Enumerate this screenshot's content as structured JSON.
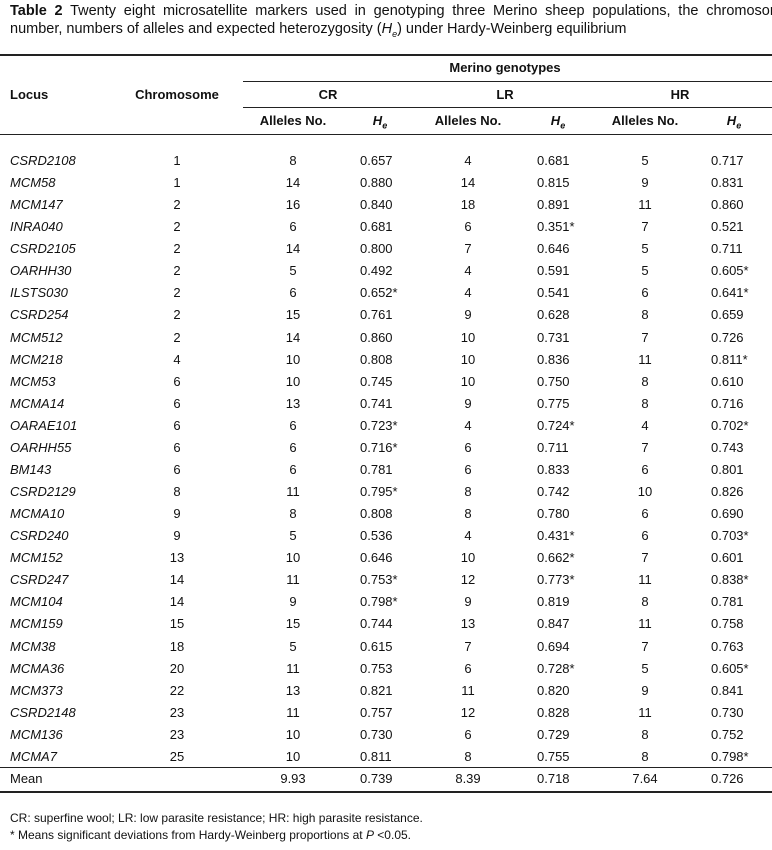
{
  "caption": {
    "label": "Table 2",
    "text": "Twenty eight microsatellite markers used in genotyping three Merino sheep populations, the chromosome number, numbers of alleles and expected heterozygosity (",
    "he_main": "H",
    "he_sub": "e",
    "tail": ") under Hardy-Weinberg equilibrium"
  },
  "header": {
    "locus": "Locus",
    "chromosome": "Chromosome",
    "group": "Merino genotypes",
    "populations": [
      "CR",
      "LR",
      "HR"
    ],
    "alleles": "Alleles No.",
    "he_main": "H",
    "he_sub": "e"
  },
  "table": {
    "rows": [
      [
        "CSRD2108",
        "1",
        "8",
        "0.657",
        "4",
        "0.681",
        "5",
        "0.717"
      ],
      [
        "MCM58",
        "1",
        "14",
        "0.880",
        "14",
        "0.815",
        "9",
        "0.831"
      ],
      [
        "MCM147",
        "2",
        "16",
        "0.840",
        "18",
        "0.891",
        "11",
        "0.860"
      ],
      [
        "INRA040",
        "2",
        "6",
        "0.681",
        "6",
        "0.351*",
        "7",
        "0.521"
      ],
      [
        "CSRD2105",
        "2",
        "14",
        "0.800",
        "7",
        "0.646",
        "5",
        "0.711"
      ],
      [
        "OARHH30",
        "2",
        "5",
        "0.492",
        "4",
        "0.591",
        "5",
        "0.605*"
      ],
      [
        "ILSTS030",
        "2",
        "6",
        "0.652*",
        "4",
        "0.541",
        "6",
        "0.641*"
      ],
      [
        "CSRD254",
        "2",
        "15",
        "0.761",
        "9",
        "0.628",
        "8",
        "0.659"
      ],
      [
        "MCM512",
        "2",
        "14",
        "0.860",
        "10",
        "0.731",
        "7",
        "0.726"
      ],
      [
        "MCM218",
        "4",
        "10",
        "0.808",
        "10",
        "0.836",
        "11",
        "0.811*"
      ],
      [
        "MCM53",
        "6",
        "10",
        "0.745",
        "10",
        "0.750",
        "8",
        "0.610"
      ],
      [
        "MCMA14",
        "6",
        "13",
        "0.741",
        "9",
        "0.775",
        "8",
        "0.716"
      ],
      [
        "OARAE101",
        "6",
        "6",
        "0.723*",
        "4",
        "0.724*",
        "4",
        "0.702*"
      ],
      [
        "OARHH55",
        "6",
        "6",
        "0.716*",
        "6",
        "0.711",
        "7",
        "0.743"
      ],
      [
        "BM143",
        "6",
        "6",
        "0.781",
        "6",
        "0.833",
        "6",
        "0.801"
      ],
      [
        "CSRD2129",
        "8",
        "11",
        "0.795*",
        "8",
        "0.742",
        "10",
        "0.826"
      ],
      [
        "MCMA10",
        "9",
        "8",
        "0.808",
        "8",
        "0.780",
        "6",
        "0.690"
      ],
      [
        "CSRD240",
        "9",
        "5",
        "0.536",
        "4",
        "0.431*",
        "6",
        "0.703*"
      ],
      [
        "MCM152",
        "13",
        "10",
        "0.646",
        "10",
        "0.662*",
        "7",
        "0.601"
      ],
      [
        "CSRD247",
        "14",
        "11",
        "0.753*",
        "12",
        "0.773*",
        "11",
        "0.838*"
      ],
      [
        "MCM104",
        "14",
        "9",
        "0.798*",
        "9",
        "0.819",
        "8",
        "0.781"
      ],
      [
        "MCM159",
        "15",
        "15",
        "0.744",
        "13",
        "0.847",
        "11",
        "0.758"
      ],
      [
        "MCM38",
        "18",
        "5",
        "0.615",
        "7",
        "0.694",
        "7",
        "0.763"
      ],
      [
        "MCMA36",
        "20",
        "11",
        "0.753",
        "6",
        "0.728*",
        "5",
        "0.605*"
      ],
      [
        "MCM373",
        "22",
        "13",
        "0.821",
        "11",
        "0.820",
        "9",
        "0.841"
      ],
      [
        "CSRD2148",
        "23",
        "11",
        "0.757",
        "12",
        "0.828",
        "11",
        "0.730"
      ],
      [
        "MCM136",
        "23",
        "10",
        "0.730",
        "6",
        "0.729",
        "8",
        "0.752"
      ],
      [
        "MCMA7",
        "25",
        "10",
        "0.811",
        "8",
        "0.755",
        "8",
        "0.798*"
      ]
    ],
    "mean": {
      "label": "Mean",
      "values": [
        "9.93",
        "0.739",
        "8.39",
        "0.718",
        "7.64",
        "0.726"
      ]
    }
  },
  "footnotes": {
    "abbrev": "CR: superfine wool; LR: low parasite resistance; HR: high parasite resistance.",
    "sig_pre": "* Means significant deviations from Hardy-Weinberg proportions at ",
    "sig_p": "P",
    "sig_post": " <0.05."
  }
}
